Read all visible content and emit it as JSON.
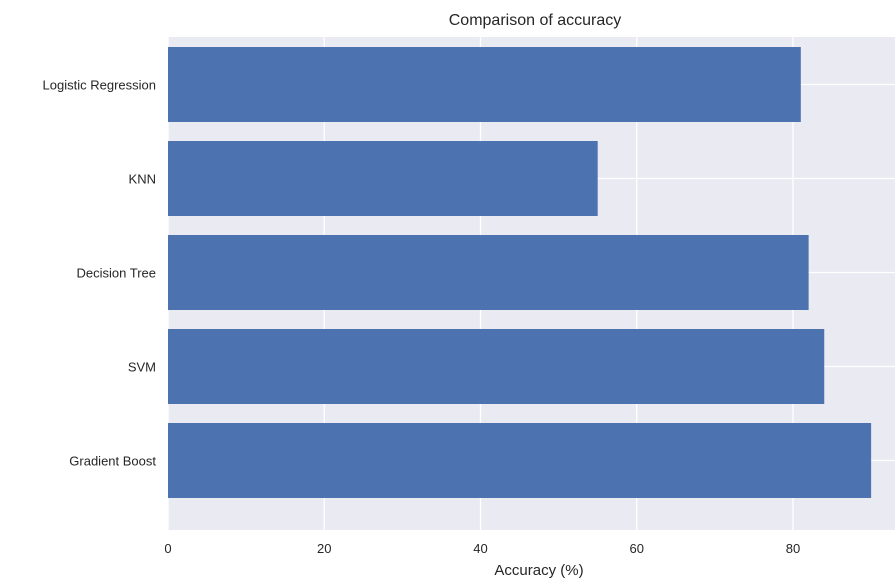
{
  "chart_data": {
    "type": "bar",
    "orientation": "horizontal",
    "title": "Comparison of accuracy",
    "xlabel": "Accuracy (%)",
    "ylabel": "",
    "categories": [
      "Logistic Regression",
      "KNN",
      "Decision Tree",
      "SVM",
      "Gradient Boost"
    ],
    "values": [
      81,
      55,
      82,
      84,
      90
    ],
    "xlim": [
      0,
      90
    ],
    "xticks": [
      0,
      20,
      40,
      60,
      80
    ],
    "grid": true,
    "colors": {
      "bar": "#4c72b0",
      "background": "#eaeaf2",
      "grid": "#ffffff"
    }
  }
}
